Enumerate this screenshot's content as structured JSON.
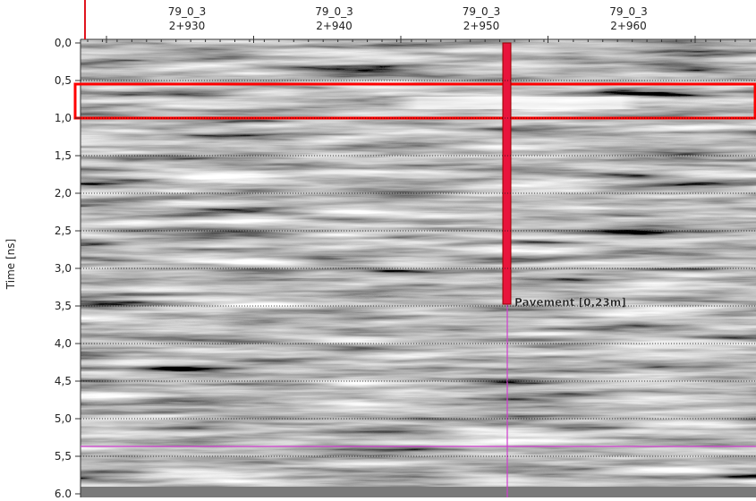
{
  "y_axis": {
    "label": "Time [ns]",
    "ticks": [
      "0,0",
      "0,5",
      "1,0",
      "1,5",
      "2,0",
      "2,5",
      "3,0",
      "3,5",
      "4,0",
      "4,5",
      "5,0",
      "5,5",
      "6,0"
    ]
  },
  "x_axis": {
    "ticks": [
      {
        "line": "79_0_3",
        "chainage": "2+930"
      },
      {
        "line": "79_0_3",
        "chainage": "2+940"
      },
      {
        "line": "79_0_3",
        "chainage": "2+950"
      },
      {
        "line": "79_0_3",
        "chainage": "2+960"
      }
    ]
  },
  "annotation": "Pavement [0,23m]"
}
